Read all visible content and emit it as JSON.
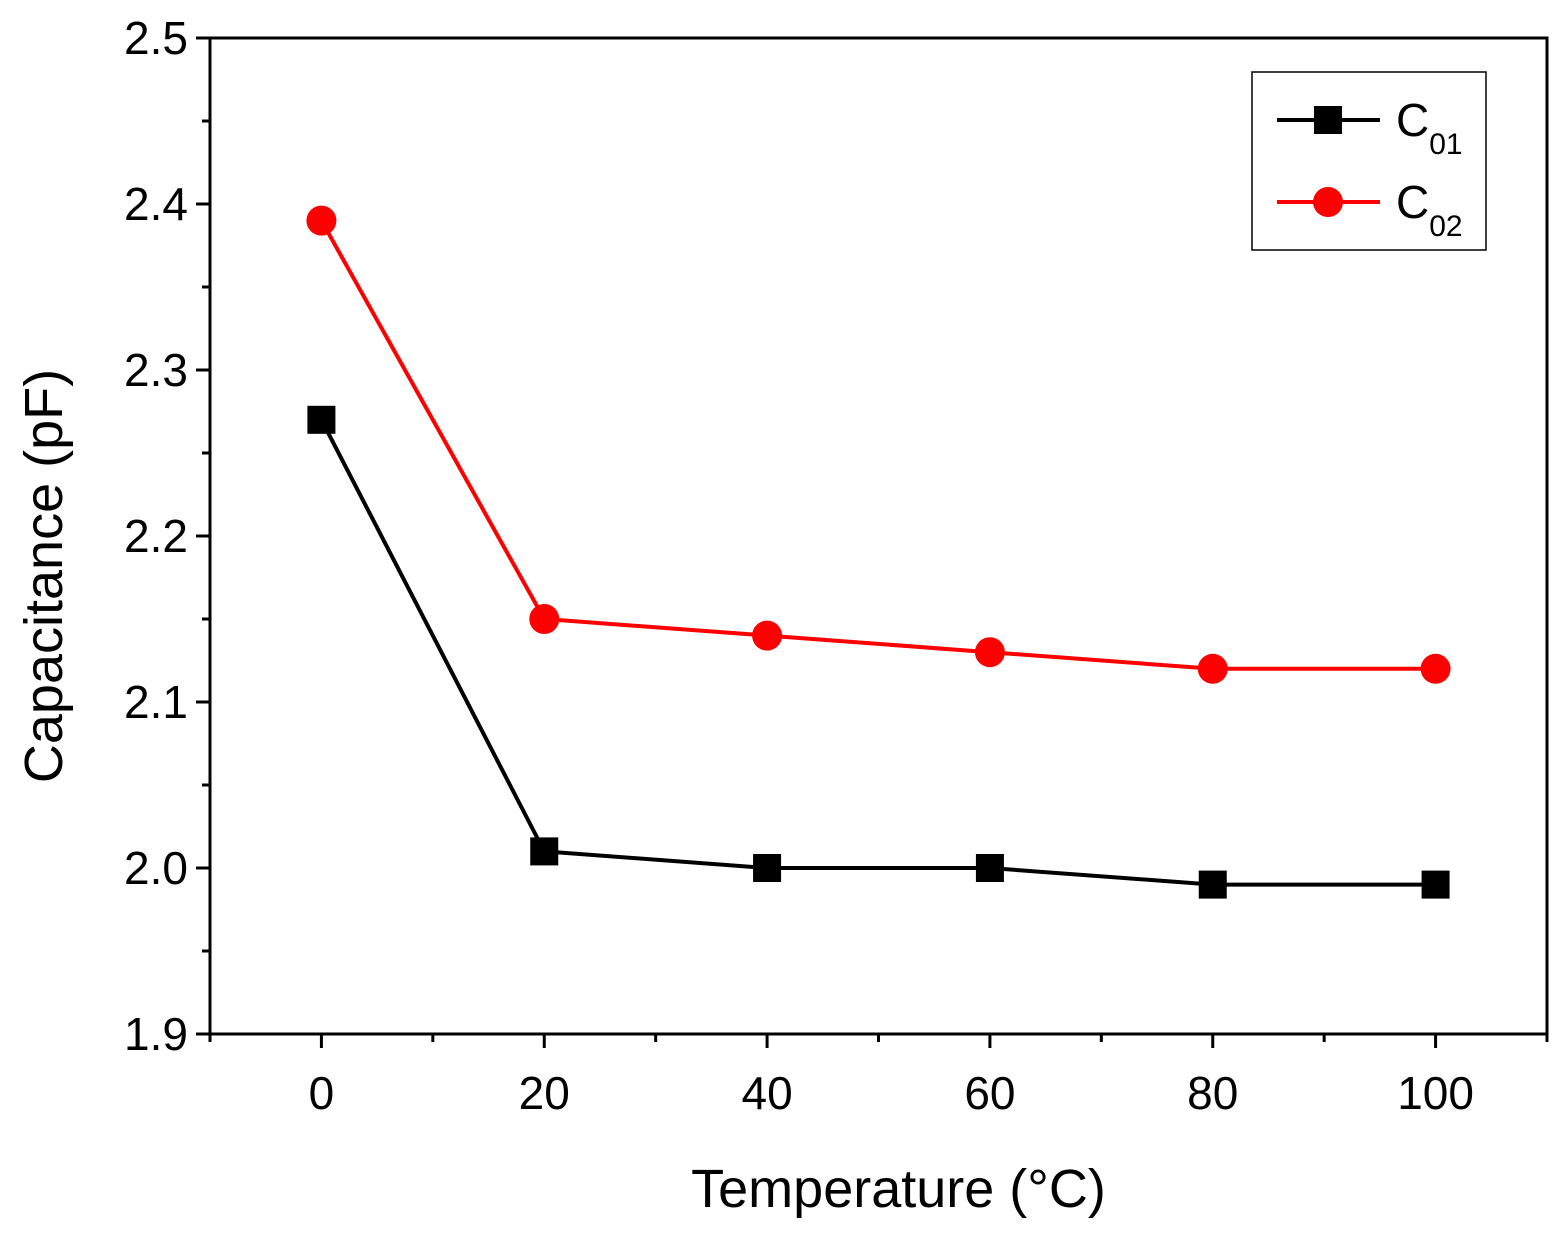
{
  "chart_data": {
    "type": "line",
    "title": "",
    "xlabel": "Temperature (°C)",
    "ylabel": "Capacitance (pF)",
    "xlim": [
      -10,
      110
    ],
    "ylim": [
      1.9,
      2.5
    ],
    "x": [
      0,
      20,
      40,
      60,
      80,
      100
    ],
    "x_ticks": [
      "0",
      "20",
      "40",
      "60",
      "80",
      "100"
    ],
    "y_ticks": [
      "1.9",
      "2.0",
      "2.1",
      "2.2",
      "2.3",
      "2.4",
      "2.5"
    ],
    "grid": false,
    "legend_position": "top-right",
    "series": [
      {
        "name": "C01",
        "label_main": "C",
        "label_sub": "01",
        "color": "#000000",
        "marker": "square",
        "values": [
          2.27,
          2.01,
          2.0,
          2.0,
          1.99,
          1.99
        ]
      },
      {
        "name": "C02",
        "label_main": "C",
        "label_sub": "02",
        "color": "#ff0000",
        "marker": "circle",
        "values": [
          2.39,
          2.15,
          2.14,
          2.13,
          2.12,
          2.12
        ]
      }
    ]
  }
}
